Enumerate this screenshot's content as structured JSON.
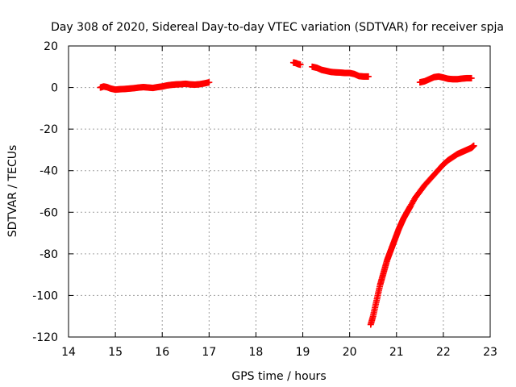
{
  "chart_data": {
    "type": "scatter",
    "title": "Day 308 of 2020, Sidereal Day-to-day VTEC variation (SDTVAR) for receiver spja",
    "xlabel": "GPS time / hours",
    "ylabel": "SDTVAR / TECUs",
    "xlim": [
      14,
      23
    ],
    "ylim": [
      -120,
      20
    ],
    "x_ticks": [
      14,
      15,
      16,
      17,
      18,
      19,
      20,
      21,
      22,
      23
    ],
    "y_ticks": [
      20,
      0,
      -20,
      -40,
      -60,
      -80,
      -100,
      -120
    ],
    "grid": true,
    "marker_color": "#ff0000",
    "marker": "plus",
    "series": [
      {
        "x": [
          14.68,
          14.75,
          14.82,
          14.9,
          15.0,
          15.1,
          15.2,
          15.3,
          15.4,
          15.5,
          15.6,
          15.7,
          15.8,
          15.9,
          16.0,
          16.1,
          16.2,
          16.3,
          16.4,
          16.5,
          16.6,
          16.7,
          16.8,
          16.9,
          17.0
        ],
        "y": [
          0.0,
          0.5,
          0.2,
          -0.5,
          -1.0,
          -0.8,
          -0.7,
          -0.5,
          -0.3,
          0.0,
          0.2,
          0.0,
          -0.2,
          0.2,
          0.5,
          1.0,
          1.3,
          1.5,
          1.6,
          1.8,
          1.5,
          1.4,
          1.6,
          2.0,
          2.5
        ]
      },
      {
        "x": [
          18.8,
          18.85,
          18.9,
          18.95
        ],
        "y": [
          12.0,
          11.8,
          11.3,
          11.0
        ]
      },
      {
        "x": [
          19.2,
          19.3,
          19.4,
          19.5,
          19.6,
          19.7,
          19.8,
          19.9,
          20.0,
          20.1,
          20.2,
          20.3,
          20.4
        ],
        "y": [
          10.0,
          9.5,
          8.5,
          8.0,
          7.5,
          7.3,
          7.2,
          7.0,
          7.0,
          6.5,
          5.5,
          5.3,
          5.3
        ]
      },
      {
        "x": [
          21.5,
          21.6,
          21.7,
          21.8,
          21.9,
          22.0,
          22.1,
          22.2,
          22.3,
          22.4,
          22.5,
          22.6
        ],
        "y": [
          2.5,
          3.0,
          4.0,
          5.0,
          5.3,
          4.8,
          4.2,
          4.0,
          4.0,
          4.3,
          4.5,
          4.5
        ]
      },
      {
        "x": [
          20.45,
          20.5,
          20.55,
          20.6,
          20.65,
          20.7,
          20.75,
          20.8,
          20.85,
          20.9,
          20.95,
          21.0,
          21.05,
          21.1,
          21.15,
          21.2,
          21.25,
          21.3,
          21.4,
          21.5,
          21.6,
          21.7,
          21.8,
          21.9,
          22.0,
          22.1,
          22.2,
          22.3,
          22.4,
          22.5,
          22.6,
          22.65
        ],
        "y": [
          -114.0,
          -110.0,
          -105.0,
          -100.0,
          -95.0,
          -91.0,
          -87.0,
          -83.0,
          -80.0,
          -77.0,
          -74.0,
          -71.0,
          -68.0,
          -65.5,
          -63.0,
          -61.0,
          -59.0,
          -57.0,
          -53.0,
          -50.0,
          -47.0,
          -44.5,
          -42.0,
          -39.5,
          -37.0,
          -35.0,
          -33.5,
          -32.0,
          -31.0,
          -30.0,
          -29.0,
          -28.0
        ]
      }
    ]
  }
}
